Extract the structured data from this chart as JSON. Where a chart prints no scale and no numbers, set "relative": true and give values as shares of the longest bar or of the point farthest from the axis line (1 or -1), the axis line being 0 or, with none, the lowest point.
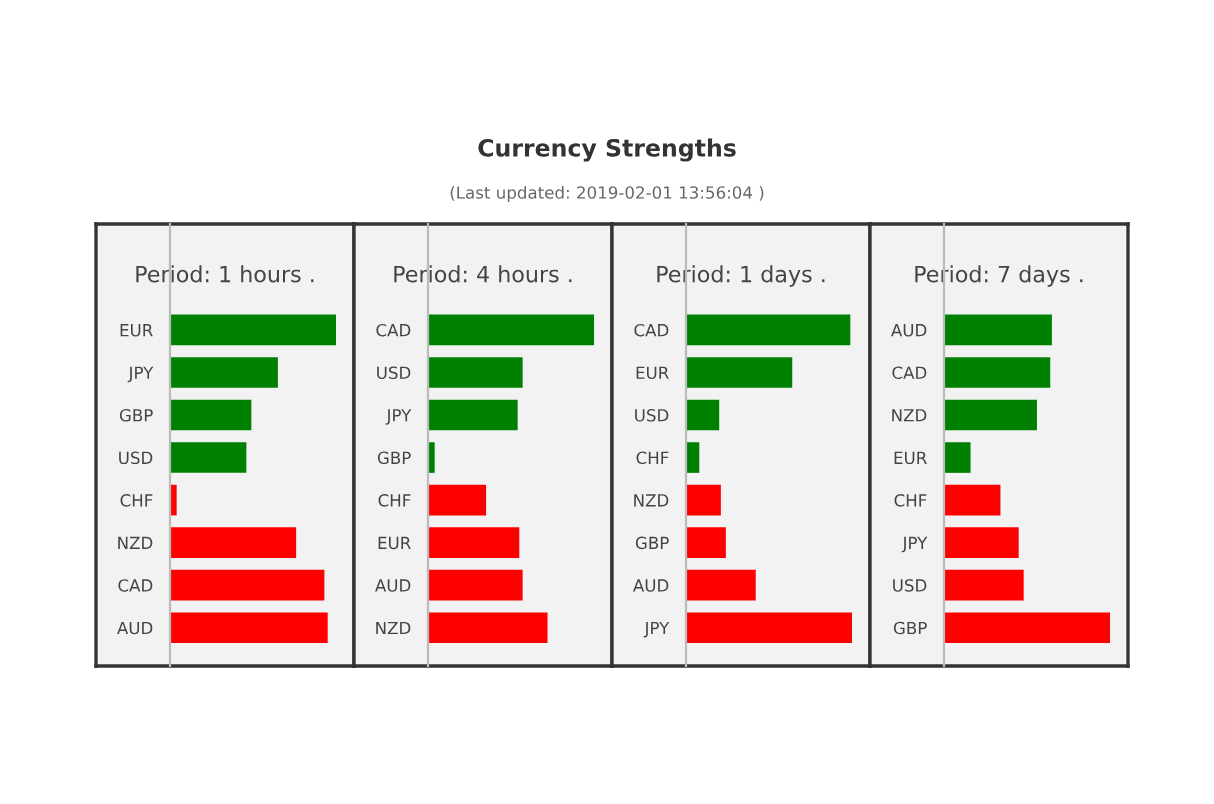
{
  "chart_data": [
    {
      "type": "bar",
      "orientation": "horizontal",
      "relative": true,
      "title": "Period: 1 hours .",
      "annotations": [
        "Currency Strengths",
        "(Last updated: 2019-02-01 13:56:04 )"
      ],
      "categories": [
        "EUR",
        "JPY",
        "GBP",
        "USD",
        "CHF",
        "NZD",
        "CAD",
        "AUD"
      ],
      "values": [
        1,
        0.65,
        0.49,
        0.46,
        0.04,
        0.76,
        0.93,
        0.95
      ],
      "colors": [
        "#008000",
        "#008000",
        "#008000",
        "#008000",
        "#ff0000",
        "#ff0000",
        "#ff0000",
        "#ff0000"
      ]
    },
    {
      "type": "bar",
      "orientation": "horizontal",
      "relative": true,
      "title": "Period: 4 hours .",
      "categories": [
        "CAD",
        "USD",
        "JPY",
        "GBP",
        "CHF",
        "EUR",
        "AUD",
        "NZD"
      ],
      "values": [
        1,
        0.57,
        0.54,
        0.04,
        0.35,
        0.55,
        0.57,
        0.72
      ],
      "colors": [
        "#008000",
        "#008000",
        "#008000",
        "#008000",
        "#ff0000",
        "#ff0000",
        "#ff0000",
        "#ff0000"
      ]
    },
    {
      "type": "bar",
      "orientation": "horizontal",
      "relative": true,
      "title": "Period: 1 days .",
      "categories": [
        "CAD",
        "EUR",
        "USD",
        "CHF",
        "NZD",
        "GBP",
        "AUD",
        "JPY"
      ],
      "values": [
        0.99,
        0.64,
        0.2,
        0.08,
        0.21,
        0.24,
        0.42,
        1
      ],
      "colors": [
        "#008000",
        "#008000",
        "#008000",
        "#008000",
        "#ff0000",
        "#ff0000",
        "#ff0000",
        "#ff0000"
      ]
    },
    {
      "type": "bar",
      "orientation": "horizontal",
      "relative": true,
      "title": "Period: 7 days .",
      "categories": [
        "AUD",
        "CAD",
        "NZD",
        "EUR",
        "CHF",
        "JPY",
        "USD",
        "GBP"
      ],
      "values": [
        0.65,
        0.64,
        0.56,
        0.16,
        0.34,
        0.45,
        0.48,
        1
      ],
      "colors": [
        "#008000",
        "#008000",
        "#008000",
        "#008000",
        "#ff0000",
        "#ff0000",
        "#ff0000",
        "#ff0000"
      ]
    }
  ]
}
